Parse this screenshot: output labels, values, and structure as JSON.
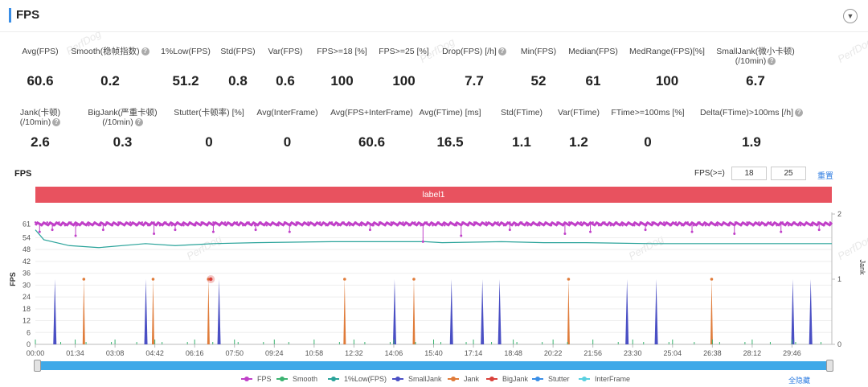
{
  "panel": {
    "title": "FPS",
    "collapse_icon": "chevron-down-icon"
  },
  "metrics_row1": [
    {
      "label": "Avg(FPS)",
      "value": "60.6",
      "help": false
    },
    {
      "label": "Smooth(稳帧指数)",
      "value": "0.2",
      "help": true
    },
    {
      "label": "1%Low(FPS)",
      "value": "51.2",
      "help": false
    },
    {
      "label": "Std(FPS)",
      "value": "0.8",
      "help": false
    },
    {
      "label": "Var(FPS)",
      "value": "0.6",
      "help": false
    },
    {
      "label": "FPS>=18 [%]",
      "value": "100",
      "help": false
    },
    {
      "label": "FPS>=25 [%]",
      "value": "100",
      "help": false
    },
    {
      "label": "Drop(FPS) [/h]",
      "value": "7.7",
      "help": true
    },
    {
      "label": "Min(FPS)",
      "value": "52",
      "help": false
    },
    {
      "label": "Median(FPS)",
      "value": "61",
      "help": false
    },
    {
      "label": "MedRange(FPS)[%]",
      "value": "100",
      "help": false
    },
    {
      "label": "SmallJank(微小卡顿)",
      "label2": "(/10min)",
      "value": "6.7",
      "help": true
    }
  ],
  "metrics_row2": [
    {
      "label": "Jank(卡顿)",
      "label2": "(/10min)",
      "value": "2.6",
      "help": true
    },
    {
      "label": "BigJank(严重卡顿)",
      "label2": "(/10min)",
      "value": "0.3",
      "help": true
    },
    {
      "label": "Stutter(卡顿率) [%]",
      "value": "0",
      "help": false
    },
    {
      "label": "Avg(InterFrame)",
      "value": "0",
      "help": false
    },
    {
      "label": "Avg(FPS+InterFrame)",
      "value": "60.6",
      "help": false
    },
    {
      "label": "Avg(FTime) [ms]",
      "value": "16.5",
      "help": false
    },
    {
      "label": "Std(FTime)",
      "value": "1.1",
      "help": false
    },
    {
      "label": "Var(FTime)",
      "value": "1.2",
      "help": false
    },
    {
      "label": "FTime>=100ms [%]",
      "value": "0",
      "help": false
    },
    {
      "label": "Delta(FTime)>100ms [/h]",
      "value": "1.9",
      "help": true
    }
  ],
  "controls": {
    "chart_title": "FPS",
    "fps_threshold_label": "FPS(>=)",
    "threshold_1": "18",
    "threshold_2": "25",
    "reset_label": "重置"
  },
  "label_bar": "label1",
  "legend": {
    "items": [
      {
        "name": "FPS",
        "color": "#c040c8"
      },
      {
        "name": "Smooth",
        "color": "#3cb371"
      },
      {
        "name": "1%Low(FPS)",
        "color": "#2aa39a"
      },
      {
        "name": "SmallJank",
        "color": "#4a4fc4"
      },
      {
        "name": "Jank",
        "color": "#e07b39"
      },
      {
        "name": "BigJank",
        "color": "#d9413b"
      },
      {
        "name": "Stutter",
        "color": "#3a8ee6"
      },
      {
        "name": "InterFrame",
        "color": "#5ad0e0"
      }
    ],
    "hide_all": "全隐藏"
  },
  "watermark": "PerfDog",
  "chart_data": {
    "type": "line",
    "ylabel_left": "FPS",
    "ylabel_right": "Jank",
    "y_ticks_left": [
      0,
      6,
      12,
      18,
      24,
      30,
      36,
      42,
      48,
      54,
      61
    ],
    "y_ticks_right": [
      0,
      1,
      2
    ],
    "ylim_left": [
      0,
      66
    ],
    "ylim_right": [
      0,
      2
    ],
    "x_ticks": [
      "00:00",
      "01:34",
      "03:08",
      "04:42",
      "06:16",
      "07:50",
      "09:24",
      "10:58",
      "12:32",
      "14:06",
      "15:40",
      "17:14",
      "18:48",
      "20:22",
      "21:56",
      "23:30",
      "25:04",
      "26:38",
      "28:12",
      "29:46"
    ],
    "xlim_seconds": [
      0,
      1880
    ],
    "series": [
      {
        "name": "FPS",
        "color": "#c040c8",
        "base": 61,
        "dips": [
          [
            10,
            57
          ],
          [
            40,
            58
          ],
          [
            95,
            55
          ],
          [
            160,
            58
          ],
          [
            280,
            56
          ],
          [
            330,
            58
          ],
          [
            420,
            57
          ],
          [
            520,
            58
          ],
          [
            600,
            57
          ],
          [
            790,
            58
          ],
          [
            915,
            52
          ],
          [
            1005,
            55
          ],
          [
            1120,
            58
          ],
          [
            1250,
            56
          ],
          [
            1310,
            57
          ],
          [
            1440,
            58
          ],
          [
            1550,
            57
          ],
          [
            1650,
            56
          ],
          [
            1760,
            57
          ],
          [
            1850,
            58
          ]
        ]
      },
      {
        "name": "1%Low(FPS)",
        "color": "#2aa39a",
        "points": [
          [
            0,
            58
          ],
          [
            20,
            53
          ],
          [
            80,
            50
          ],
          [
            150,
            49
          ],
          [
            260,
            51
          ],
          [
            330,
            50
          ],
          [
            420,
            51
          ],
          [
            520,
            51.5
          ],
          [
            700,
            52
          ],
          [
            920,
            52
          ],
          [
            960,
            51.5
          ],
          [
            1100,
            52
          ],
          [
            1200,
            51.5
          ],
          [
            1300,
            51.5
          ],
          [
            1450,
            51
          ],
          [
            1600,
            51
          ],
          [
            1880,
            51
          ]
        ]
      },
      {
        "name": "SmallJank",
        "color": "#4a4fc4",
        "spikes": [
          60,
          340,
          565,
          1105,
          1280,
          1375,
          1428,
          1820,
          1910,
          2330,
          2385
        ]
      },
      {
        "name": "Jank",
        "color": "#e07b39",
        "spikes": [
          105,
          255,
          375,
          670,
          820,
          1155,
          1465
        ]
      },
      {
        "name": "BigJank",
        "color": "#d9413b",
        "spikes": [
          380
        ]
      }
    ]
  }
}
